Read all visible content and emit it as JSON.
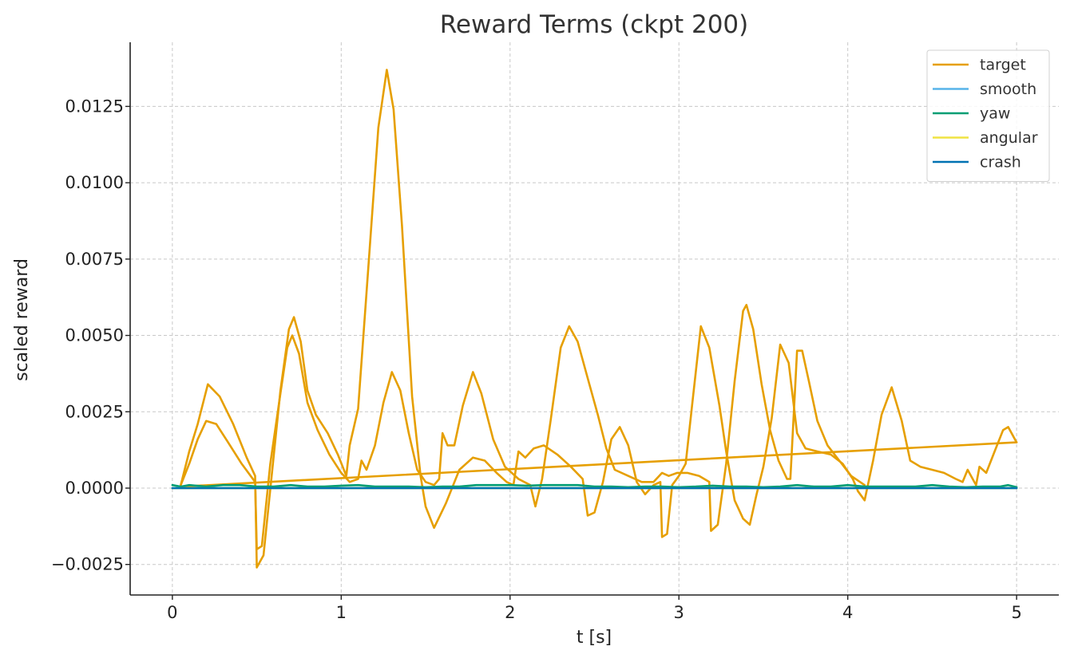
{
  "chart_data": {
    "type": "line",
    "title": "Reward Terms (ckpt 200)",
    "xlabel": "t [s]",
    "ylabel": "scaled reward",
    "xlim": [
      -0.25,
      5.25
    ],
    "ylim": [
      -0.0035,
      0.0146
    ],
    "xticks": [
      0,
      1,
      2,
      3,
      4,
      5
    ],
    "xtick_labels": [
      "0",
      "1",
      "2",
      "3",
      "4",
      "5"
    ],
    "yticks": [
      -0.0025,
      0.0,
      0.0025,
      0.005,
      0.0075,
      0.01,
      0.0125
    ],
    "ytick_labels": [
      "−0.0025",
      "0.0000",
      "0.0025",
      "0.0050",
      "0.0075",
      "0.0100",
      "0.0125"
    ],
    "grid": true,
    "legend_position": "top-right",
    "series": [
      {
        "name": "target",
        "color": "#E69F00",
        "segments": [
          [
            [
              0.05,
              0.0001
            ],
            [
              0.1,
              0.0012
            ],
            [
              0.15,
              0.0021
            ],
            [
              0.21,
              0.0034
            ],
            [
              0.28,
              0.003
            ],
            [
              0.36,
              0.0021
            ],
            [
              0.44,
              0.001
            ],
            [
              0.49,
              0.0004
            ],
            [
              0.5,
              -0.0026
            ],
            [
              0.54,
              -0.0022
            ],
            [
              0.59,
              0.0005
            ],
            [
              0.64,
              0.0032
            ],
            [
              0.69,
              0.0052
            ],
            [
              0.72,
              0.0056
            ],
            [
              0.76,
              0.0048
            ],
            [
              0.8,
              0.0032
            ],
            [
              0.85,
              0.0024
            ],
            [
              0.92,
              0.0018
            ],
            [
              0.98,
              0.0011
            ],
            [
              1.03,
              0.0004
            ],
            [
              1.05,
              0.0014
            ],
            [
              1.1,
              0.0026
            ],
            [
              1.16,
              0.0072
            ],
            [
              1.22,
              0.0118
            ],
            [
              1.27,
              0.0137
            ],
            [
              1.31,
              0.0124
            ],
            [
              1.36,
              0.0086
            ],
            [
              1.42,
              0.003
            ],
            [
              1.47,
              0.0004
            ],
            [
              1.5,
              -0.0006
            ],
            [
              1.55,
              -0.0013
            ],
            [
              1.62,
              -0.0005
            ],
            [
              1.7,
              0.0006
            ],
            [
              1.78,
              0.001
            ],
            [
              1.85,
              0.0009
            ],
            [
              1.92,
              0.0005
            ],
            [
              1.98,
              0.0002
            ],
            [
              2.02,
              0.0001
            ],
            [
              2.05,
              0.0012
            ],
            [
              2.09,
              0.001
            ],
            [
              2.14,
              0.0013
            ],
            [
              2.2,
              0.0014
            ],
            [
              2.28,
              0.0011
            ],
            [
              2.36,
              0.0007
            ],
            [
              2.43,
              0.0003
            ],
            [
              2.46,
              -0.0009
            ],
            [
              2.5,
              -0.0008
            ],
            [
              2.55,
              0.0002
            ],
            [
              2.6,
              0.0016
            ],
            [
              2.65,
              0.002
            ],
            [
              2.7,
              0.0014
            ],
            [
              2.75,
              0.0002
            ],
            [
              2.8,
              -0.0002
            ],
            [
              2.85,
              0.0001
            ],
            [
              2.89,
              0.0002
            ],
            [
              2.9,
              -0.0016
            ],
            [
              2.93,
              -0.0015
            ],
            [
              2.96,
              0.0001
            ],
            [
              3.0,
              0.0004
            ],
            [
              3.04,
              0.0008
            ],
            [
              3.08,
              0.0028
            ],
            [
              3.13,
              0.0053
            ],
            [
              3.18,
              0.0046
            ],
            [
              3.24,
              0.0027
            ],
            [
              3.28,
              0.0012
            ],
            [
              3.33,
              -0.0004
            ],
            [
              3.38,
              -0.001
            ],
            [
              3.42,
              -0.0012
            ],
            [
              3.46,
              -0.0002
            ],
            [
              3.5,
              0.0007
            ],
            [
              3.55,
              0.0023
            ],
            [
              3.6,
              0.0047
            ],
            [
              3.65,
              0.0041
            ],
            [
              3.7,
              0.0018
            ],
            [
              3.75,
              0.0013
            ],
            [
              3.82,
              0.0012
            ],
            [
              3.9,
              0.0011
            ],
            [
              3.97,
              0.0008
            ],
            [
              4.03,
              0.0003
            ],
            [
              4.06,
              -0.0001
            ],
            [
              4.1,
              -0.0004
            ],
            [
              4.15,
              0.0009
            ],
            [
              4.2,
              0.0024
            ],
            [
              4.26,
              0.0033
            ],
            [
              4.32,
              0.0022
            ],
            [
              4.37,
              0.0009
            ],
            [
              4.43,
              0.0007
            ],
            [
              4.5,
              0.0006
            ],
            [
              4.57,
              0.0005
            ],
            [
              4.64,
              0.0003
            ],
            [
              4.68,
              0.0002
            ],
            [
              4.71,
              0.0006
            ],
            [
              4.76,
              0.0001
            ],
            [
              4.78,
              0.0007
            ],
            [
              4.82,
              0.0005
            ],
            [
              4.87,
              0.0012
            ],
            [
              4.92,
              0.0019
            ],
            [
              4.95,
              0.002
            ],
            [
              5.0,
              0.0015
            ]
          ],
          [
            [
              0.05,
              0.0001
            ],
            [
              0.1,
              0.0008
            ],
            [
              0.15,
              0.0016
            ],
            [
              0.2,
              0.0022
            ],
            [
              0.26,
              0.0021
            ],
            [
              0.33,
              0.0015
            ],
            [
              0.41,
              0.0008
            ],
            [
              0.49,
              0.0002
            ],
            [
              0.5,
              -0.002
            ],
            [
              0.53,
              -0.0019
            ],
            [
              0.58,
              0.0008
            ],
            [
              0.64,
              0.0031
            ],
            [
              0.68,
              0.0046
            ],
            [
              0.71,
              0.005
            ],
            [
              0.75,
              0.0044
            ],
            [
              0.8,
              0.0028
            ],
            [
              0.86,
              0.0019
            ],
            [
              0.93,
              0.0011
            ],
            [
              1.0,
              0.0005
            ],
            [
              1.05,
              0.0002
            ],
            [
              1.1,
              0.0003
            ],
            [
              1.12,
              0.0009
            ],
            [
              1.15,
              0.0006
            ],
            [
              1.2,
              0.0014
            ],
            [
              1.25,
              0.0028
            ],
            [
              1.3,
              0.0038
            ],
            [
              1.35,
              0.0032
            ],
            [
              1.4,
              0.0018
            ],
            [
              1.45,
              0.0006
            ],
            [
              1.5,
              0.0002
            ],
            [
              1.55,
              0.0001
            ],
            [
              1.58,
              0.0003
            ],
            [
              1.6,
              0.0018
            ],
            [
              1.63,
              0.0014
            ],
            [
              1.67,
              0.0014
            ],
            [
              1.72,
              0.0027
            ],
            [
              1.78,
              0.0038
            ],
            [
              1.83,
              0.0031
            ],
            [
              1.9,
              0.0016
            ],
            [
              1.97,
              0.0007
            ],
            [
              2.05,
              0.0003
            ],
            [
              2.12,
              0.0001
            ],
            [
              2.15,
              -0.0006
            ],
            [
              2.19,
              0.0003
            ],
            [
              2.24,
              0.0022
            ],
            [
              2.3,
              0.0046
            ],
            [
              2.35,
              0.0053
            ],
            [
              2.4,
              0.0048
            ],
            [
              2.46,
              0.0036
            ],
            [
              2.52,
              0.0024
            ],
            [
              2.57,
              0.0013
            ],
            [
              2.62,
              0.0006
            ],
            [
              2.7,
              0.0004
            ],
            [
              2.78,
              0.0002
            ],
            [
              2.85,
              0.0002
            ],
            [
              2.9,
              0.0005
            ],
            [
              2.94,
              0.0004
            ],
            [
              2.99,
              0.0005
            ],
            [
              3.05,
              0.0005
            ],
            [
              3.12,
              0.0004
            ],
            [
              3.18,
              0.0002
            ],
            [
              3.19,
              -0.0014
            ],
            [
              3.23,
              -0.0012
            ],
            [
              3.28,
              0.0008
            ],
            [
              3.33,
              0.0035
            ],
            [
              3.38,
              0.0058
            ],
            [
              3.4,
              0.006
            ],
            [
              3.44,
              0.0052
            ],
            [
              3.49,
              0.0034
            ],
            [
              3.54,
              0.0019
            ],
            [
              3.59,
              0.0009
            ],
            [
              3.64,
              0.0003
            ],
            [
              3.66,
              0.0003
            ],
            [
              3.7,
              0.0045
            ],
            [
              3.73,
              0.0045
            ],
            [
              3.77,
              0.0035
            ],
            [
              3.82,
              0.0022
            ],
            [
              3.88,
              0.0014
            ],
            [
              3.95,
              0.0009
            ],
            [
              4.02,
              0.0004
            ],
            [
              4.1,
              0.0001
            ]
          ],
          [
            [
              0.05,
              5e-05
            ],
            [
              5.0,
              0.0015
            ]
          ]
        ]
      },
      {
        "name": "smooth",
        "color": "#56B4E9",
        "segments": [
          [
            [
              0.0,
              0.0
            ],
            [
              5.0,
              0.0
            ]
          ]
        ]
      },
      {
        "name": "yaw",
        "color": "#009E73",
        "segments": [
          [
            [
              0.0,
              0.0001
            ],
            [
              0.05,
              5e-05
            ],
            [
              0.1,
              0.0001
            ],
            [
              0.2,
              5e-05
            ],
            [
              0.3,
              0.0001
            ],
            [
              0.4,
              0.0001
            ],
            [
              0.5,
              5e-05
            ],
            [
              0.6,
              5e-05
            ],
            [
              0.7,
              0.0001
            ],
            [
              0.8,
              5e-05
            ],
            [
              0.9,
              5e-05
            ],
            [
              1.0,
              8e-05
            ],
            [
              1.1,
              0.0001
            ],
            [
              1.2,
              5e-05
            ],
            [
              1.3,
              5e-05
            ],
            [
              1.4,
              5e-05
            ],
            [
              1.5,
              3e-05
            ],
            [
              1.6,
              5e-05
            ],
            [
              1.7,
              5e-05
            ],
            [
              1.8,
              0.0001
            ],
            [
              1.9,
              0.0001
            ],
            [
              2.0,
              0.0001
            ],
            [
              2.1,
              8e-05
            ],
            [
              2.2,
              0.0001
            ],
            [
              2.3,
              0.0001
            ],
            [
              2.4,
              0.0001
            ],
            [
              2.5,
              5e-05
            ],
            [
              2.6,
              5e-05
            ],
            [
              2.7,
              3e-05
            ],
            [
              2.8,
              5e-05
            ],
            [
              2.9,
              5e-05
            ],
            [
              3.0,
              3e-05
            ],
            [
              3.1,
              5e-05
            ],
            [
              3.2,
              8e-05
            ],
            [
              3.3,
              5e-05
            ],
            [
              3.4,
              5e-05
            ],
            [
              3.5,
              3e-05
            ],
            [
              3.6,
              5e-05
            ],
            [
              3.7,
              0.0001
            ],
            [
              3.8,
              5e-05
            ],
            [
              3.9,
              5e-05
            ],
            [
              4.0,
              0.0001
            ],
            [
              4.1,
              5e-05
            ],
            [
              4.2,
              5e-05
            ],
            [
              4.3,
              5e-05
            ],
            [
              4.4,
              5e-05
            ],
            [
              4.5,
              0.0001
            ],
            [
              4.6,
              5e-05
            ],
            [
              4.7,
              3e-05
            ],
            [
              4.8,
              5e-05
            ],
            [
              4.9,
              5e-05
            ],
            [
              4.95,
              0.0001
            ],
            [
              5.0,
              3e-05
            ]
          ]
        ]
      },
      {
        "name": "angular",
        "color": "#F0E442",
        "segments": [
          [
            [
              0.0,
              0.0
            ],
            [
              5.0,
              0.0
            ]
          ]
        ]
      },
      {
        "name": "crash",
        "color": "#0072B2",
        "segments": [
          [
            [
              0.0,
              0.0
            ],
            [
              5.0,
              0.0
            ]
          ]
        ]
      }
    ]
  }
}
